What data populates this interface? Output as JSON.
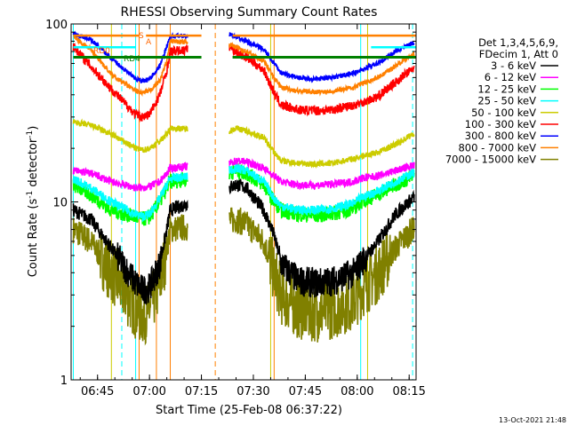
{
  "chart_data": {
    "type": "line",
    "title": "RHESSI Observing Summary Count Rates",
    "xlabel": "Start Time (25-Feb-08 06:37:22)",
    "ylabel_prefix": "Count Rate (s",
    "ylabel_sup": "-1",
    "ylabel_suffix": " detector",
    "ylabel_close": ")",
    "yscale": "log",
    "xlim": [
      "06:37:22",
      "08:17:00"
    ],
    "ylim": [
      1,
      100
    ],
    "x_ticks": [
      "06:45",
      "07:00",
      "07:15",
      "07:30",
      "07:45",
      "08:00",
      "08:15"
    ],
    "y_ticks": [
      "1",
      "10",
      "100"
    ],
    "timestamp": "13-Oct-2021 21:48",
    "legend": {
      "placement": "right",
      "header": [
        "Det 1,3,4,5,6,9,",
        "FDecim 1, Att 0"
      ]
    },
    "annotations": [
      {
        "text": "RD0",
        "color": "#ff6600"
      },
      {
        "text": "RD4",
        "color": "#008000"
      },
      {
        "text": "S",
        "color": "#ff6600"
      },
      {
        "text": "A",
        "color": "#ff6600"
      }
    ],
    "gaps": [
      {
        "from": "07:11",
        "to": "07:23"
      },
      {
        "from": "07:19",
        "to": "07:23"
      }
    ],
    "x_key": [
      "06:38",
      "06:43",
      "06:49",
      "06:56",
      "06:58",
      "07:00",
      "07:03",
      "07:05",
      "07:06",
      "07:23",
      "07:25",
      "07:28",
      "07:33",
      "07:36",
      "07:38",
      "07:43",
      "07:48",
      "07:53",
      "07:59",
      "08:01",
      "08:06",
      "08:11",
      "08:16"
    ],
    "series": [
      {
        "name": "3 - 6 keV",
        "color": "#000000",
        "noise": 0.09,
        "values": [
          9,
          8,
          5.5,
          3.5,
          3.2,
          3.3,
          4.5,
          7,
          9,
          12,
          12.5,
          12,
          9,
          6.5,
          4.5,
          3.6,
          3.5,
          3.6,
          4,
          4.5,
          6,
          8.5,
          10.5
        ]
      },
      {
        "name": "6 - 12 keV",
        "color": "#ff00ff",
        "noise": 0.05,
        "values": [
          15,
          14.5,
          13,
          12,
          12,
          12.2,
          13,
          14.5,
          15.5,
          16.5,
          17,
          16.8,
          15.5,
          14,
          13,
          12.5,
          12.4,
          12.6,
          13,
          13.5,
          14,
          15,
          16
        ]
      },
      {
        "name": "12 - 25 keV",
        "color": "#00ff00",
        "noise": 0.1,
        "values": [
          12.5,
          11,
          9,
          8.2,
          8,
          8.2,
          10,
          12,
          13,
          14.5,
          15,
          14.5,
          12.5,
          10,
          9,
          8.5,
          8.4,
          8.6,
          9.2,
          10,
          11,
          12.5,
          14
        ]
      },
      {
        "name": "25 - 50 keV",
        "color": "#00ffff",
        "noise": 0.06,
        "values": [
          13.5,
          12,
          10,
          8.5,
          8.3,
          8.5,
          10.5,
          12.5,
          13.5,
          15,
          15.5,
          15,
          13,
          10.5,
          9.5,
          9,
          9,
          9.2,
          9.8,
          10.5,
          11.5,
          13,
          14.5
        ]
      },
      {
        "name": "50 - 100 keV",
        "color": "#cccc00",
        "noise": 0.04,
        "values": [
          28,
          27,
          24,
          20,
          19.5,
          20,
          22,
          24,
          26,
          25,
          26,
          25,
          23,
          19,
          17,
          16.5,
          16.3,
          16.5,
          17.5,
          18,
          19,
          21,
          24
        ]
      },
      {
        "name": "100 - 300 keV",
        "color": "#ff0000",
        "noise": 0.06,
        "values": [
          75,
          58,
          43,
          31,
          30,
          31,
          40,
          55,
          70,
          75,
          70,
          65,
          55,
          41,
          35,
          33,
          32.5,
          33,
          35,
          36,
          39,
          47,
          56
        ]
      },
      {
        "name": "300 - 800 keV",
        "color": "#0000ff",
        "noise": 0.03,
        "values": [
          88,
          82,
          64,
          49,
          48,
          49,
          58,
          75,
          85,
          88,
          84,
          80,
          72,
          60,
          53,
          50,
          49,
          50,
          53,
          55,
          60,
          70,
          78
        ]
      },
      {
        "name": "800 - 7000 keV",
        "color": "#ff8000",
        "noise": 0.03,
        "values": [
          85,
          72,
          52,
          42,
          41,
          42,
          48,
          62,
          80,
          77,
          74,
          70,
          62,
          50,
          44,
          42,
          41.5,
          42,
          44,
          46,
          50,
          58,
          68
        ]
      },
      {
        "name": "7000 - 15000 keV",
        "color": "#808000",
        "noise": 0.18,
        "values": [
          7,
          6,
          4,
          2.5,
          2.3,
          2.5,
          3.5,
          5.5,
          7,
          7.8,
          8,
          7.5,
          6,
          4,
          3,
          2.5,
          2.4,
          2.5,
          2.8,
          3.2,
          4,
          5.5,
          7
        ]
      }
    ],
    "flags": [
      {
        "name": "RD0",
        "color": "#ff8000",
        "value": 86,
        "segments": [
          [
            "06:38",
            "06:57"
          ],
          [
            "06:59",
            "07:15"
          ],
          [
            "07:24",
            "08:17"
          ]
        ]
      },
      {
        "name": "RD4",
        "color": "#008000",
        "value": 65,
        "segments": [
          [
            "06:38",
            "07:15"
          ],
          [
            "07:24",
            "08:17"
          ]
        ]
      },
      {
        "name": "SAA",
        "color": "#00ffff",
        "value": 74,
        "segments": [
          [
            "06:38",
            "06:56"
          ],
          [
            "08:04",
            "08:17"
          ]
        ]
      }
    ],
    "vlines": [
      {
        "time": "06:38",
        "color": "#00ffff",
        "style": "solid"
      },
      {
        "time": "06:52",
        "color": "#00ffff",
        "style": "dashed"
      },
      {
        "time": "06:49",
        "color": "#cccc00",
        "style": "solid"
      },
      {
        "time": "06:56",
        "color": "#00ffff",
        "style": "solid"
      },
      {
        "time": "06:57",
        "color": "#ff8000",
        "style": "solid"
      },
      {
        "time": "07:02",
        "color": "#ff8000",
        "style": "solid"
      },
      {
        "time": "07:06",
        "color": "#ff8000",
        "style": "solid"
      },
      {
        "time": "07:19",
        "color": "#ff8000",
        "style": "dashed"
      },
      {
        "time": "07:35",
        "color": "#cccc00",
        "style": "solid"
      },
      {
        "time": "07:36",
        "color": "#ff8000",
        "style": "solid"
      },
      {
        "time": "08:01",
        "color": "#00ffff",
        "style": "solid"
      },
      {
        "time": "08:03",
        "color": "#cccc00",
        "style": "solid"
      },
      {
        "time": "08:16",
        "color": "#00ffff",
        "style": "dashed"
      }
    ]
  }
}
